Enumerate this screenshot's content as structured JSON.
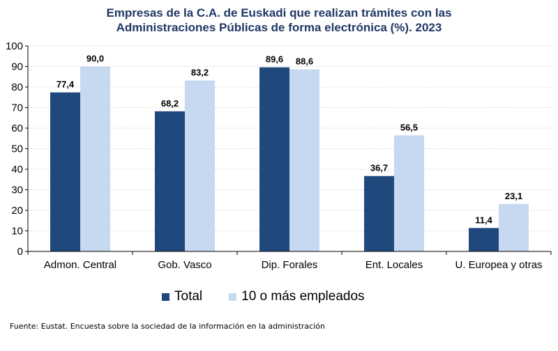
{
  "chart_data": {
    "type": "bar",
    "title_lines": [
      "Empresas de la C.A. de Euskadi que realizan trámites con las",
      "Administraciones Públicas de forma electrónica (%). 2023"
    ],
    "categories": [
      "Admon. Central",
      "Gob. Vasco",
      "Dip. Forales",
      "Ent. Locales",
      "U. Europea y otras"
    ],
    "series": [
      {
        "name": "Total",
        "values": [
          77.4,
          68.2,
          89.6,
          36.7,
          11.4
        ],
        "labels": [
          "77,4",
          "68,2",
          "89,6",
          "36,7",
          "11,4"
        ],
        "color": "#1f497d"
      },
      {
        "name": "10 o más empleados",
        "values": [
          90.0,
          83.2,
          88.6,
          56.5,
          23.1
        ],
        "labels": [
          "90,0",
          "83,2",
          "88,6",
          "56,5",
          "23,1"
        ],
        "color": "#c6d9f1"
      }
    ],
    "ylim": [
      0,
      100
    ],
    "yticks": [
      "0",
      "10",
      "20",
      "30",
      "40",
      "50",
      "60",
      "70",
      "80",
      "90",
      "100"
    ],
    "grid": true,
    "legend_position": "bottom"
  },
  "source": "Fuente: Eustat. Encuesta sobre la sociedad de la información en la administración"
}
